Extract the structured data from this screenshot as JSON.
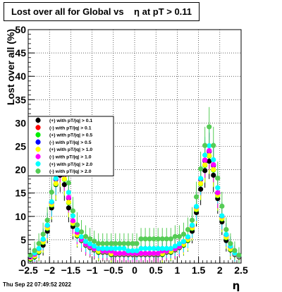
{
  "title": "Lost over all for Global vs    η at pT > 0.11",
  "timestamp": "Thu Sep 22 07:49:52 2022",
  "chart_data": {
    "type": "scatter",
    "xlabel": "η",
    "ylabel": "Lost over all (%)",
    "xlim": [
      -2.5,
      2.5
    ],
    "ylim": [
      0,
      50
    ],
    "x_ticks": [
      -2.5,
      -2,
      -1.5,
      -1,
      -0.5,
      0,
      0.5,
      1,
      1.5,
      2,
      2.5
    ],
    "x_tick_labels": [
      "−2.5",
      "−2",
      "−1.5",
      "−1",
      "−0.5",
      "0",
      "0.5",
      "1",
      "1.5",
      "2",
      "2.5"
    ],
    "y_ticks": [
      0,
      5,
      10,
      15,
      20,
      25,
      30,
      35,
      40,
      45,
      50
    ],
    "grid": true,
    "legend_position": "left-middle",
    "x": [
      -2.45,
      -2.35,
      -2.25,
      -2.15,
      -2.05,
      -1.95,
      -1.85,
      -1.75,
      -1.65,
      -1.55,
      -1.45,
      -1.35,
      -1.25,
      -1.15,
      -1.05,
      -0.95,
      -0.85,
      -0.75,
      -0.65,
      -0.55,
      -0.45,
      -0.35,
      -0.25,
      -0.15,
      -0.05,
      0.05,
      0.15,
      0.25,
      0.35,
      0.45,
      0.55,
      0.65,
      0.75,
      0.85,
      0.95,
      1.05,
      1.15,
      1.25,
      1.35,
      1.45,
      1.55,
      1.65,
      1.75,
      1.85,
      1.95,
      2.05,
      2.15,
      2.25,
      2.35,
      2.45
    ],
    "series": [
      {
        "name": "(+) with pT/|q| > 0.1",
        "color": "#000000",
        "values": [
          1,
          1.5,
          2.5,
          4,
          7,
          12,
          17,
          19,
          17,
          12,
          8,
          6,
          5,
          4,
          3.5,
          3,
          2.5,
          2.5,
          2.5,
          2,
          2,
          2,
          2,
          2,
          2,
          2,
          2,
          2,
          2,
          2,
          2,
          2,
          2.5,
          2.5,
          3,
          3.5,
          4,
          5,
          7,
          11,
          16,
          20,
          22,
          19,
          14,
          9,
          5,
          3,
          2,
          1.5
        ]
      },
      {
        "name": "(-) with pT/|q| > 0.1",
        "color": "#ff0000",
        "values": [
          1.2,
          1.8,
          3,
          5,
          8,
          13,
          18,
          21,
          19,
          14,
          9,
          6.5,
          5,
          4,
          3.5,
          3,
          3,
          2.5,
          2.5,
          2.5,
          2,
          2,
          2,
          2,
          2,
          2,
          2,
          2,
          2,
          2,
          2,
          2.5,
          2.5,
          3,
          3,
          3.5,
          4.5,
          5.5,
          8,
          12,
          18,
          22,
          24,
          21,
          15,
          10,
          6,
          3.5,
          2,
          1.5
        ]
      },
      {
        "name": "(+) with pT/|q| > 0.5",
        "color": "#00ee00",
        "values": [
          1,
          1.5,
          2.5,
          4.5,
          7.5,
          12.5,
          17,
          20,
          18,
          13,
          8.5,
          6,
          5,
          4,
          3.5,
          3,
          2.5,
          2.5,
          2.5,
          2,
          2,
          2,
          2,
          2,
          2,
          2,
          2,
          2,
          2,
          2,
          2,
          2,
          2.5,
          2.5,
          3,
          3.5,
          4,
          5,
          7.5,
          11.5,
          17,
          21,
          23,
          20,
          14.5,
          9.5,
          5.5,
          3,
          2,
          1.5
        ]
      },
      {
        "name": "(-) with pT/|q| > 0.5",
        "color": "#0000ff",
        "values": [
          1.2,
          1.8,
          3,
          5,
          8,
          13,
          18,
          21,
          19,
          14,
          9,
          6.5,
          5,
          4,
          3.5,
          3,
          3,
          2.5,
          2.5,
          2.5,
          2,
          2,
          2,
          2,
          2,
          2,
          2,
          2,
          2,
          2,
          2,
          2.5,
          2.5,
          3,
          3,
          3.5,
          4.5,
          5.5,
          8,
          12,
          18,
          22,
          24,
          21,
          15,
          10,
          6,
          3.5,
          2,
          1.5
        ]
      },
      {
        "name": "(+) with pT/|q| > 1.0",
        "color": "#ffff00",
        "values": [
          1,
          1.5,
          2.5,
          4.5,
          7.5,
          12.5,
          17,
          20,
          18,
          13,
          8.5,
          6,
          5,
          4,
          3.5,
          3,
          2.5,
          2.5,
          2.5,
          2,
          2,
          2,
          2,
          2,
          2,
          2,
          2,
          2,
          2,
          2,
          2,
          2,
          2.5,
          2.5,
          3,
          3.5,
          4,
          5,
          7.5,
          11.5,
          17,
          21,
          23,
          20,
          14.5,
          9.5,
          5.5,
          3,
          2,
          1.5
        ]
      },
      {
        "name": "(-) with pT/|q| > 1.0",
        "color": "#ff00ff",
        "values": [
          1.2,
          1.8,
          3,
          5,
          8,
          13,
          18,
          21,
          19,
          14,
          9,
          6.5,
          5,
          4,
          3.5,
          3,
          3,
          2.5,
          2.5,
          2.5,
          2,
          2,
          2,
          2,
          2,
          2,
          2,
          2,
          2,
          2,
          2,
          2.5,
          2.5,
          3,
          3,
          3.5,
          4.5,
          5.5,
          8,
          12,
          18,
          22,
          24,
          21,
          15,
          10,
          6,
          3.5,
          2,
          1.5
        ]
      },
      {
        "name": "(+) with pT/|q| > 2.0",
        "color": "#00ffff",
        "values": [
          1.5,
          2,
          3,
          5,
          8,
          13,
          18,
          22,
          20,
          15,
          10,
          7,
          5.5,
          4.5,
          4,
          3.5,
          3,
          3,
          3,
          3,
          3,
          3,
          3,
          2.5,
          2.5,
          2.5,
          3,
          3,
          3,
          3,
          3,
          3,
          3,
          3,
          3.5,
          4,
          4.5,
          5.5,
          8,
          12,
          18,
          23,
          25,
          22,
          16,
          10,
          6,
          3.5,
          2,
          1.5
        ]
      },
      {
        "name": "(-) with pT/|q| > 2.0",
        "color": "#55cc55",
        "values": [
          1.5,
          2.5,
          4,
          6,
          9,
          15,
          20,
          24,
          22,
          17,
          11,
          8,
          6.5,
          5.5,
          5,
          4.5,
          4,
          4,
          4,
          4,
          4,
          4,
          4,
          4,
          4,
          4,
          5,
          5,
          5,
          5,
          5,
          5,
          5,
          5,
          5.5,
          5.5,
          6,
          7,
          9,
          14,
          20,
          25,
          29,
          25,
          18,
          12,
          7,
          4,
          2.5,
          1.5
        ]
      }
    ]
  }
}
